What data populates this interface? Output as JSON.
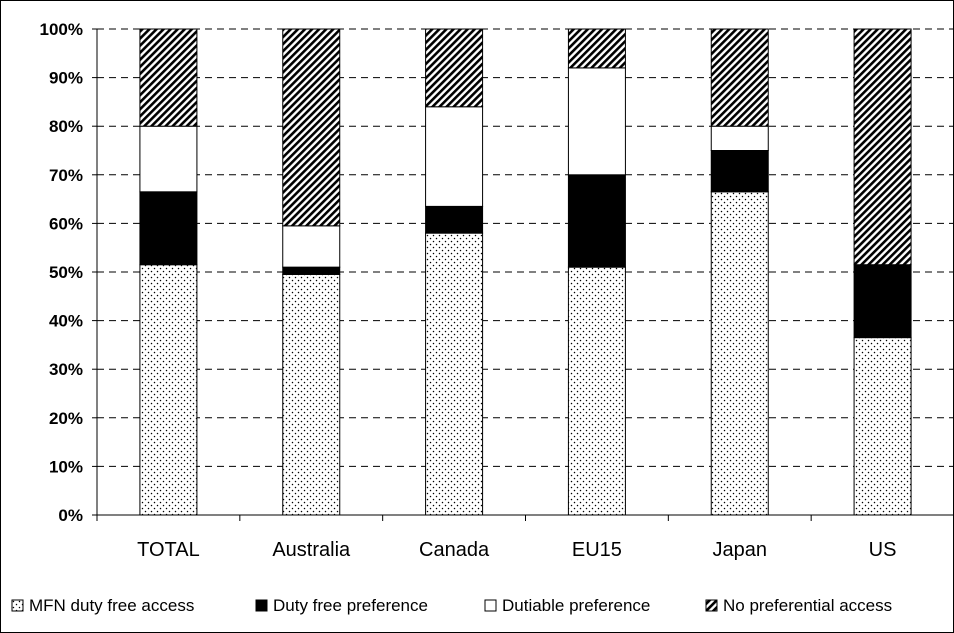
{
  "chart_data": {
    "type": "bar",
    "stacked": true,
    "normalized": true,
    "categories": [
      "TOTAL",
      "Australia",
      "Canada",
      "EU15",
      "Japan",
      "US"
    ],
    "series": [
      {
        "name": "MFN duty free access",
        "values": [
          51.5,
          49.5,
          58,
          51,
          66.5,
          36.5
        ],
        "pattern": "dots"
      },
      {
        "name": "Duty free preference",
        "values": [
          15,
          1.5,
          5.5,
          19,
          8.5,
          15
        ],
        "pattern": "solid-black"
      },
      {
        "name": "Dutiable preference",
        "values": [
          13.5,
          8.5,
          20.5,
          22,
          5,
          0
        ],
        "pattern": "white"
      },
      {
        "name": "No preferential access",
        "values": [
          20,
          40.5,
          16,
          8,
          20,
          48.5
        ],
        "pattern": "hatch"
      }
    ],
    "yticks": [
      "0%",
      "10%",
      "20%",
      "30%",
      "40%",
      "50%",
      "60%",
      "70%",
      "80%",
      "90%",
      "100%"
    ],
    "ylim": [
      0,
      100
    ],
    "grid": true,
    "legend_position": "bottom"
  }
}
